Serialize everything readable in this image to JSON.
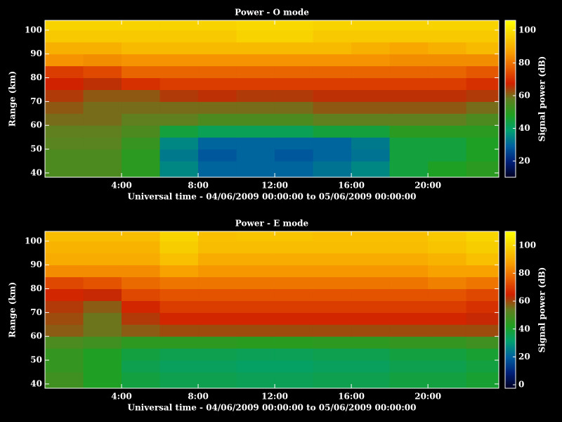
{
  "chart_data": [
    {
      "type": "heatmap",
      "title": "Power - O mode",
      "xlabel": "Universal time - 04/06/2009 00:00:00 to 05/06/2009 00:00:00",
      "ylabel": "Range (km)",
      "colorbar_label": "Signal power (dB)",
      "x": [
        0,
        2,
        4,
        6,
        8,
        10,
        12,
        14,
        16,
        18,
        20,
        22,
        23.7
      ],
      "y": [
        38.2,
        45,
        50,
        55,
        60,
        65,
        70,
        75,
        80,
        85,
        90,
        95,
        100,
        104.1
      ],
      "z": [
        [
          55,
          55,
          50,
          35,
          30,
          30,
          30,
          32,
          35,
          45,
          48,
          50
        ],
        [
          55,
          55,
          50,
          33,
          28,
          30,
          28,
          30,
          32,
          45,
          45,
          48
        ],
        [
          57,
          57,
          52,
          35,
          30,
          30,
          30,
          30,
          33,
          45,
          45,
          48
        ],
        [
          58,
          58,
          55,
          45,
          42,
          42,
          42,
          45,
          45,
          50,
          50,
          50
        ],
        [
          60,
          60,
          58,
          58,
          55,
          55,
          55,
          58,
          58,
          58,
          58,
          55
        ],
        [
          62,
          60,
          60,
          60,
          60,
          60,
          60,
          62,
          62,
          62,
          62,
          60
        ],
        [
          65,
          62,
          62,
          65,
          66,
          65,
          65,
          66,
          66,
          66,
          66,
          65
        ],
        [
          68,
          66,
          70,
          72,
          72,
          72,
          72,
          72,
          72,
          72,
          72,
          70
        ],
        [
          72,
          74,
          78,
          78,
          78,
          78,
          78,
          78,
          78,
          78,
          78,
          76
        ],
        [
          85,
          84,
          85,
          85,
          85,
          85,
          85,
          85,
          85,
          84,
          84,
          84
        ],
        [
          90,
          90,
          92,
          92,
          92,
          92,
          92,
          92,
          90,
          88,
          90,
          92
        ],
        [
          95,
          95,
          95,
          95,
          95,
          97,
          97,
          95,
          95,
          95,
          95,
          95
        ],
        [
          97,
          97,
          97,
          97,
          97,
          98,
          98,
          97,
          97,
          97,
          97,
          97
        ]
      ],
      "xlim": [
        0,
        23.7
      ],
      "ylim": [
        38.2,
        104.1
      ],
      "xticks": [
        {
          "value": 4,
          "label": "4:00"
        },
        {
          "value": 8,
          "label": "8:00"
        },
        {
          "value": 12,
          "label": "12:00"
        },
        {
          "value": 16,
          "label": "16:00"
        },
        {
          "value": 20,
          "label": "20:00"
        }
      ],
      "yticks": [
        40,
        50,
        60,
        70,
        80,
        90,
        100
      ],
      "zlim": [
        10.1,
        106
      ],
      "zticks": [
        20,
        40,
        60,
        80,
        100
      ],
      "colormap": [
        "#000020",
        "#00207a",
        "#0060a0",
        "#00a070",
        "#20a020",
        "#608020",
        "#d02000",
        "#e86000",
        "#f8a000",
        "#f8d000",
        "#ffff00"
      ]
    },
    {
      "type": "heatmap",
      "title": "Power - E mode",
      "xlabel": "Universal time - 04/06/2009 00:00:00 to 05/06/2009 00:00:00",
      "ylabel": "Range (km)",
      "colorbar_label": "Signal power (dB)",
      "x": [
        0,
        2,
        4,
        6,
        8,
        10,
        12,
        14,
        16,
        18,
        20,
        22,
        23.7
      ],
      "y": [
        38.2,
        45,
        50,
        55,
        60,
        65,
        70,
        75,
        80,
        85,
        90,
        95,
        100,
        104.1
      ],
      "z": [
        [
          48,
          42,
          38,
          36,
          36,
          35,
          35,
          36,
          36,
          38,
          38,
          40
        ],
        [
          46,
          42,
          36,
          34,
          34,
          33,
          33,
          34,
          34,
          36,
          36,
          38
        ],
        [
          46,
          42,
          38,
          36,
          36,
          35,
          35,
          36,
          36,
          38,
          38,
          40
        ],
        [
          50,
          48,
          45,
          45,
          45,
          44,
          44,
          45,
          45,
          46,
          46,
          48
        ],
        [
          58,
          55,
          58,
          60,
          60,
          60,
          60,
          60,
          60,
          60,
          60,
          60
        ],
        [
          60,
          55,
          62,
          66,
          66,
          66,
          66,
          66,
          66,
          66,
          66,
          64
        ],
        [
          62,
          58,
          66,
          70,
          70,
          70,
          70,
          70,
          70,
          70,
          70,
          68
        ],
        [
          66,
          64,
          72,
          74,
          74,
          74,
          74,
          74,
          74,
          74,
          74,
          72
        ],
        [
          72,
          74,
          78,
          80,
          80,
          80,
          80,
          80,
          80,
          80,
          82,
          80
        ],
        [
          84,
          84,
          84,
          88,
          86,
          86,
          86,
          86,
          86,
          86,
          88,
          88
        ],
        [
          90,
          90,
          90,
          95,
          90,
          90,
          90,
          90,
          90,
          90,
          92,
          95
        ],
        [
          92,
          92,
          92,
          98,
          94,
          94,
          94,
          94,
          94,
          94,
          96,
          98
        ],
        [
          94,
          94,
          94,
          100,
          95,
          96,
          96,
          95,
          95,
          95,
          97,
          100
        ]
      ],
      "xlim": [
        0,
        23.7
      ],
      "ylim": [
        38.2,
        104.1
      ],
      "xticks": [
        {
          "value": 4,
          "label": "4:00"
        },
        {
          "value": 8,
          "label": "8:00"
        },
        {
          "value": 12,
          "label": "12:00"
        },
        {
          "value": 16,
          "label": "16:00"
        },
        {
          "value": 20,
          "label": "20:00"
        }
      ],
      "yticks": [
        40,
        50,
        60,
        70,
        80,
        90,
        100
      ],
      "zlim": [
        -2.5,
        110
      ],
      "zticks": [
        0,
        20,
        40,
        60,
        80,
        100
      ],
      "colormap": [
        "#000020",
        "#00207a",
        "#0060a0",
        "#00a070",
        "#20a020",
        "#608020",
        "#d02000",
        "#e86000",
        "#f8a000",
        "#f8d000",
        "#ffff00"
      ]
    }
  ]
}
